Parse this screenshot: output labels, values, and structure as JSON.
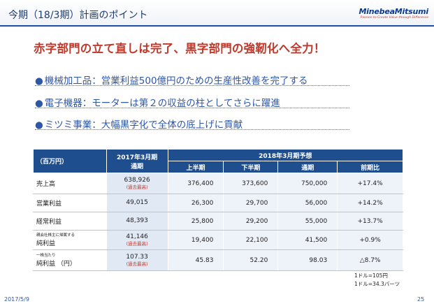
{
  "header": {
    "title": "今期（18/3期）計画のポイント",
    "logo_main": "MinebeaMitsumi",
    "logo_tagline": "Passion to Create Value through Difference"
  },
  "headline": "赤字部門の立て直しは完了、黒字部門の強靭化へ全力！",
  "bullets": [
    {
      "dot": "●",
      "text": "機械加工品：営業利益500億円のための生産性改善を完了する"
    },
    {
      "dot": "●",
      "text": "電子機器：モーターは第２の収益の柱としてさらに躍進"
    },
    {
      "dot": "●",
      "text": "ミツミ事業：大幅黒字化で全体の底上げに貢献"
    }
  ],
  "table": {
    "unit_label": "（百万円）",
    "prev_header_line1": "2017年3月期",
    "prev_header_line2": "通期",
    "forecast_header": "2018年3月期予想",
    "col_h1": "上半期",
    "col_h2": "下半期",
    "col_full": "通期",
    "col_yoy": "前期比",
    "rows": [
      {
        "label": "売上高",
        "label_small": "",
        "prev": "638,926",
        "prev_note": "(過去最高)",
        "h1": "376,400",
        "h2": "373,600",
        "full": "750,000",
        "yoy": "+17.4%"
      },
      {
        "label": "営業利益",
        "label_small": "",
        "prev": "49,015",
        "prev_note": "",
        "h1": "26,300",
        "h2": "29,700",
        "full": "56,000",
        "yoy": "+14.2%"
      },
      {
        "label": "経常利益",
        "label_small": "",
        "prev": "48,393",
        "prev_note": "",
        "h1": "25,800",
        "h2": "29,200",
        "full": "55,000",
        "yoy": "+13.7%"
      },
      {
        "label": "純利益",
        "label_small": "親会社株主に帰属する",
        "prev": "41,146",
        "prev_note": "(過去最高)",
        "h1": "19,400",
        "h2": "22,100",
        "full": "41,500",
        "yoy": "+0.9%"
      },
      {
        "label": "純利益 （円）",
        "label_small": "一株当たり",
        "prev": "107.33",
        "prev_note": "(過去最高)",
        "h1": "45.83",
        "h2": "52.20",
        "full": "98.03",
        "yoy": "△8.7%"
      }
    ]
  },
  "footnotes": {
    "fx1": "1ドル=105円",
    "fx2": "1ドル=34.3バーツ"
  },
  "footer": {
    "date": "2017/5/9",
    "page": "25"
  }
}
